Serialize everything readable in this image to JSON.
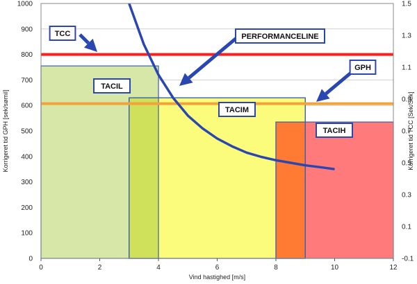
{
  "chart_data": {
    "type": "area",
    "xlabel": "Vind hastighed [m/s]",
    "ylabel_left": "Korrigeret tid GPH [sek/sømil]",
    "ylabel_right": "Korrigeret tid TCC [Sek/Sek]",
    "xlim": [
      0,
      12
    ],
    "ylim_left": [
      0,
      1000
    ],
    "ylim_right": [
      -0.1,
      1.5
    ],
    "x_ticks": [
      "0",
      "2",
      "4",
      "6",
      "8",
      "10",
      "12"
    ],
    "y_left_ticks": [
      "0",
      "100",
      "200",
      "300",
      "400",
      "500",
      "600",
      "700",
      "800",
      "900",
      "1000"
    ],
    "y_right_ticks": [
      "-0.1",
      "0.1",
      "0.3",
      "0.5",
      "0.7",
      "0.9",
      "1.1",
      "1.3",
      "1.5"
    ],
    "grid": true,
    "regions": [
      {
        "name": "TACIL",
        "x_start": 0,
        "x_end": 4,
        "top": 755,
        "color": "#d6e7a8"
      },
      {
        "name": "TACIM",
        "x_start": 3,
        "x_end": 9,
        "top": 630,
        "color": "#fbfb7c"
      },
      {
        "name": "TACIH",
        "x_start": 8,
        "x_end": 12,
        "top": 535,
        "color": "#ff7a7a"
      }
    ],
    "overlaps": [
      {
        "x_start": 3,
        "x_end": 4,
        "color": "#cfe15a"
      },
      {
        "x_start": 8,
        "x_end": 9,
        "color": "#ff7a33"
      }
    ],
    "lines": [
      {
        "name": "TCC",
        "y": 800,
        "color": "#ff1e1e"
      },
      {
        "name": "GPH",
        "y": 607,
        "color": "#f2a43c"
      }
    ],
    "performance_line": {
      "name": "PERFORMANCELINE",
      "color": "#2a46b0",
      "x": [
        3.0,
        3.5,
        4.0,
        4.5,
        5.0,
        5.5,
        6.0,
        6.5,
        7.0,
        7.5,
        8.0,
        8.5,
        9.0,
        9.5,
        10.0
      ],
      "y": [
        1000,
        840,
        720,
        630,
        560,
        510,
        470,
        440,
        415,
        398,
        385,
        375,
        365,
        358,
        350
      ]
    },
    "callouts": [
      "TCC",
      "TACIL",
      "PERFORMANCELINE",
      "GPH",
      "TACIM",
      "TACIH"
    ]
  }
}
